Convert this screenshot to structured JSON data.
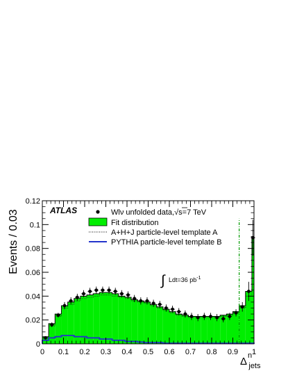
{
  "chart_data": {
    "type": "bar",
    "experiment_label": "ATLAS",
    "lumi_label": {
      "integral": "∫",
      "text": "Ldt=36 pb",
      "exponent": "-1"
    },
    "ylabel": "Events / 0.03",
    "xlabel": {
      "base": "Δ",
      "superscript": "n",
      "subscript": "jets"
    },
    "xlim": [
      0,
      1
    ],
    "ylim": [
      0,
      0.12
    ],
    "xticks": [
      0,
      0.1,
      0.2,
      0.3,
      0.4,
      0.5,
      0.6,
      0.7,
      0.8,
      0.9,
      1
    ],
    "xtick_labels": [
      "0",
      "0.1",
      "0.2",
      "0.3",
      "0.4",
      "0.5",
      "0.6",
      "0.7",
      "0.8",
      "0.9",
      "1"
    ],
    "yticks": [
      0,
      0.02,
      0.04,
      0.06,
      0.08,
      0.1,
      0.12
    ],
    "ytick_labels": [
      "0",
      "0.02",
      "0.04",
      "0.06",
      "0.08",
      "0.1",
      "0.12"
    ],
    "legend_position": "top-right",
    "legend": {
      "data": {
        "main": "Wlν unfolded data,",
        "sqrt": "√",
        "s_energy": "s=7 TeV"
      },
      "fit": "Fit distribution",
      "template_a": "A+H+J particle-level template A",
      "template_b": "PYTHIA particle-level template B"
    },
    "colors": {
      "fit_fill": "#00ee00",
      "template_b": "#2233cc",
      "cut_line": "#009900"
    },
    "cut_line_x": 0.93,
    "bin_edges": [
      0,
      0.03,
      0.06,
      0.09,
      0.12,
      0.15,
      0.18,
      0.21,
      0.24,
      0.27,
      0.3,
      0.33,
      0.36,
      0.39,
      0.42,
      0.45,
      0.48,
      0.51,
      0.54,
      0.57,
      0.6,
      0.63,
      0.66,
      0.69,
      0.72,
      0.75,
      0.78,
      0.81,
      0.84,
      0.87,
      0.9,
      0.93,
      0.96,
      0.99,
      1.0
    ],
    "series": [
      {
        "name": "Fit distribution",
        "kind": "histogram",
        "values": [
          0.006,
          0.017,
          0.025,
          0.032,
          0.035,
          0.038,
          0.04,
          0.041,
          0.042,
          0.043,
          0.043,
          0.042,
          0.04,
          0.039,
          0.037,
          0.036,
          0.035,
          0.033,
          0.031,
          0.029,
          0.027,
          0.025,
          0.024,
          0.023,
          0.023,
          0.023,
          0.023,
          0.023,
          0.024,
          0.025,
          0.027,
          0.032,
          0.044,
          0.089
        ]
      },
      {
        "name": "A+H+J particle-level template A",
        "kind": "histogram-dotted",
        "values": [
          0.005,
          0.015,
          0.023,
          0.03,
          0.033,
          0.036,
          0.038,
          0.039,
          0.04,
          0.041,
          0.041,
          0.04,
          0.039,
          0.038,
          0.036,
          0.035,
          0.034,
          0.032,
          0.03,
          0.028,
          0.026,
          0.024,
          0.023,
          0.022,
          0.022,
          0.022,
          0.022,
          0.022,
          0.023,
          0.024,
          0.026,
          0.03,
          0.04,
          0.085
        ]
      },
      {
        "name": "PYTHIA particle-level template B",
        "kind": "histogram",
        "values": [
          0.003,
          0.005,
          0.006,
          0.007,
          0.007,
          0.006,
          0.006,
          0.005,
          0.005,
          0.004,
          0.004,
          0.003,
          0.003,
          0.002,
          0.002,
          0.0015,
          0.001,
          0.001,
          0.001,
          0.0005,
          0.0005,
          0.0005,
          0.0005,
          0.0005,
          0.0005,
          0.0005,
          0.0005,
          0.0005,
          0.0005,
          0.0005,
          0.0005,
          0.0005,
          0.0005,
          0.0005
        ]
      },
      {
        "name": "Wlν unfolded data",
        "kind": "points",
        "x": [
          0.015,
          0.045,
          0.075,
          0.105,
          0.135,
          0.165,
          0.195,
          0.225,
          0.255,
          0.285,
          0.315,
          0.345,
          0.375,
          0.405,
          0.435,
          0.465,
          0.495,
          0.525,
          0.555,
          0.585,
          0.615,
          0.645,
          0.675,
          0.705,
          0.735,
          0.765,
          0.795,
          0.825,
          0.855,
          0.885,
          0.915,
          0.945,
          0.975,
          0.995
        ],
        "values": [
          0.005,
          0.016,
          0.024,
          0.032,
          0.036,
          0.039,
          0.042,
          0.044,
          0.045,
          0.045,
          0.045,
          0.044,
          0.042,
          0.041,
          0.038,
          0.036,
          0.036,
          0.034,
          0.033,
          0.03,
          0.029,
          0.027,
          0.025,
          0.023,
          0.022,
          0.023,
          0.023,
          0.022,
          0.021,
          0.023,
          0.026,
          0.031,
          0.044,
          0.089
        ],
        "errors": [
          0.001,
          0.002,
          0.002,
          0.003,
          0.003,
          0.003,
          0.003,
          0.003,
          0.003,
          0.003,
          0.003,
          0.003,
          0.003,
          0.003,
          0.003,
          0.003,
          0.003,
          0.003,
          0.003,
          0.003,
          0.003,
          0.003,
          0.003,
          0.003,
          0.003,
          0.003,
          0.003,
          0.003,
          0.003,
          0.003,
          0.003,
          0.004,
          0.008,
          0.015
        ]
      }
    ]
  }
}
